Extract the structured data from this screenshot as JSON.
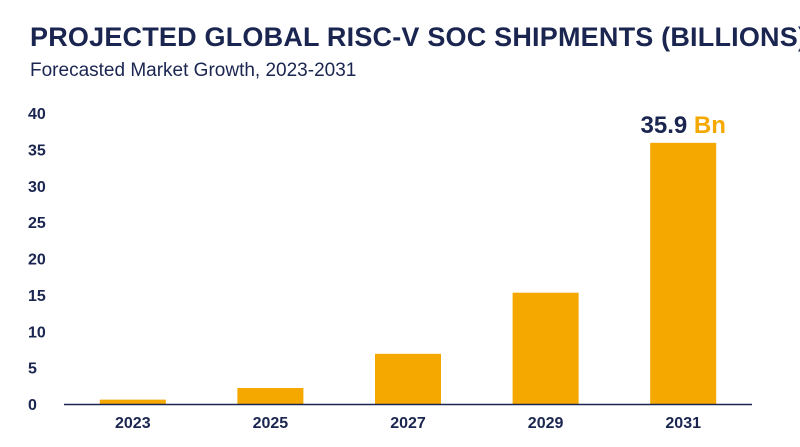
{
  "title": "PROJECTED GLOBAL RISC-V SOC SHIPMENTS (BILLIONS)",
  "subtitle": "Forecasted Market Growth, 2023-2031",
  "colors": {
    "bar": "#f5a800",
    "text": "#1a2550",
    "axis": "#1a2550"
  },
  "chart_data": {
    "type": "bar",
    "title": "PROJECTED GLOBAL RISC-V SOC SHIPMENTS (BILLIONS)",
    "subtitle": "Forecasted Market Growth, 2023-2031",
    "xlabel": "",
    "ylabel": "",
    "categories": [
      "2023",
      "2025",
      "2027",
      "2029",
      "2031"
    ],
    "values": [
      0.6,
      2.2,
      6.9,
      15.3,
      35.9
    ],
    "ylim": [
      0,
      40
    ],
    "yticks": [
      0,
      5,
      10,
      15,
      20,
      25,
      30,
      35,
      40
    ],
    "grid": false,
    "data_labels": [
      {
        "category": "2031",
        "value": "35.9",
        "unit": "Bn"
      }
    ]
  }
}
